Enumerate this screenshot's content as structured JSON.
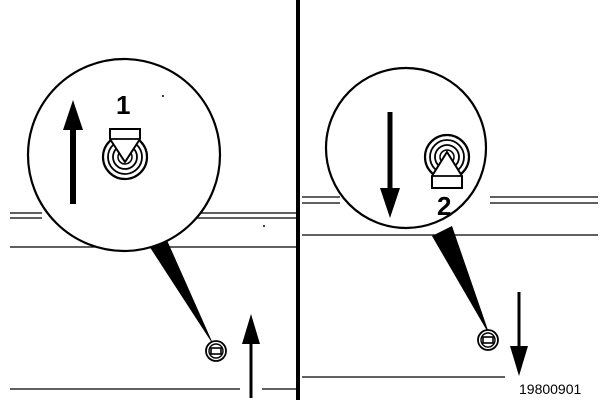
{
  "panels": [
    {
      "id": "left",
      "callout_number": "1",
      "direction": "up",
      "icon": "lock-knob-raised-icon"
    },
    {
      "id": "right",
      "callout_number": "2",
      "direction": "down",
      "icon": "lock-knob-lowered-icon"
    }
  ],
  "figure_reference": "19800901",
  "colors": {
    "ink": "#000000",
    "paper": "#ffffff"
  }
}
